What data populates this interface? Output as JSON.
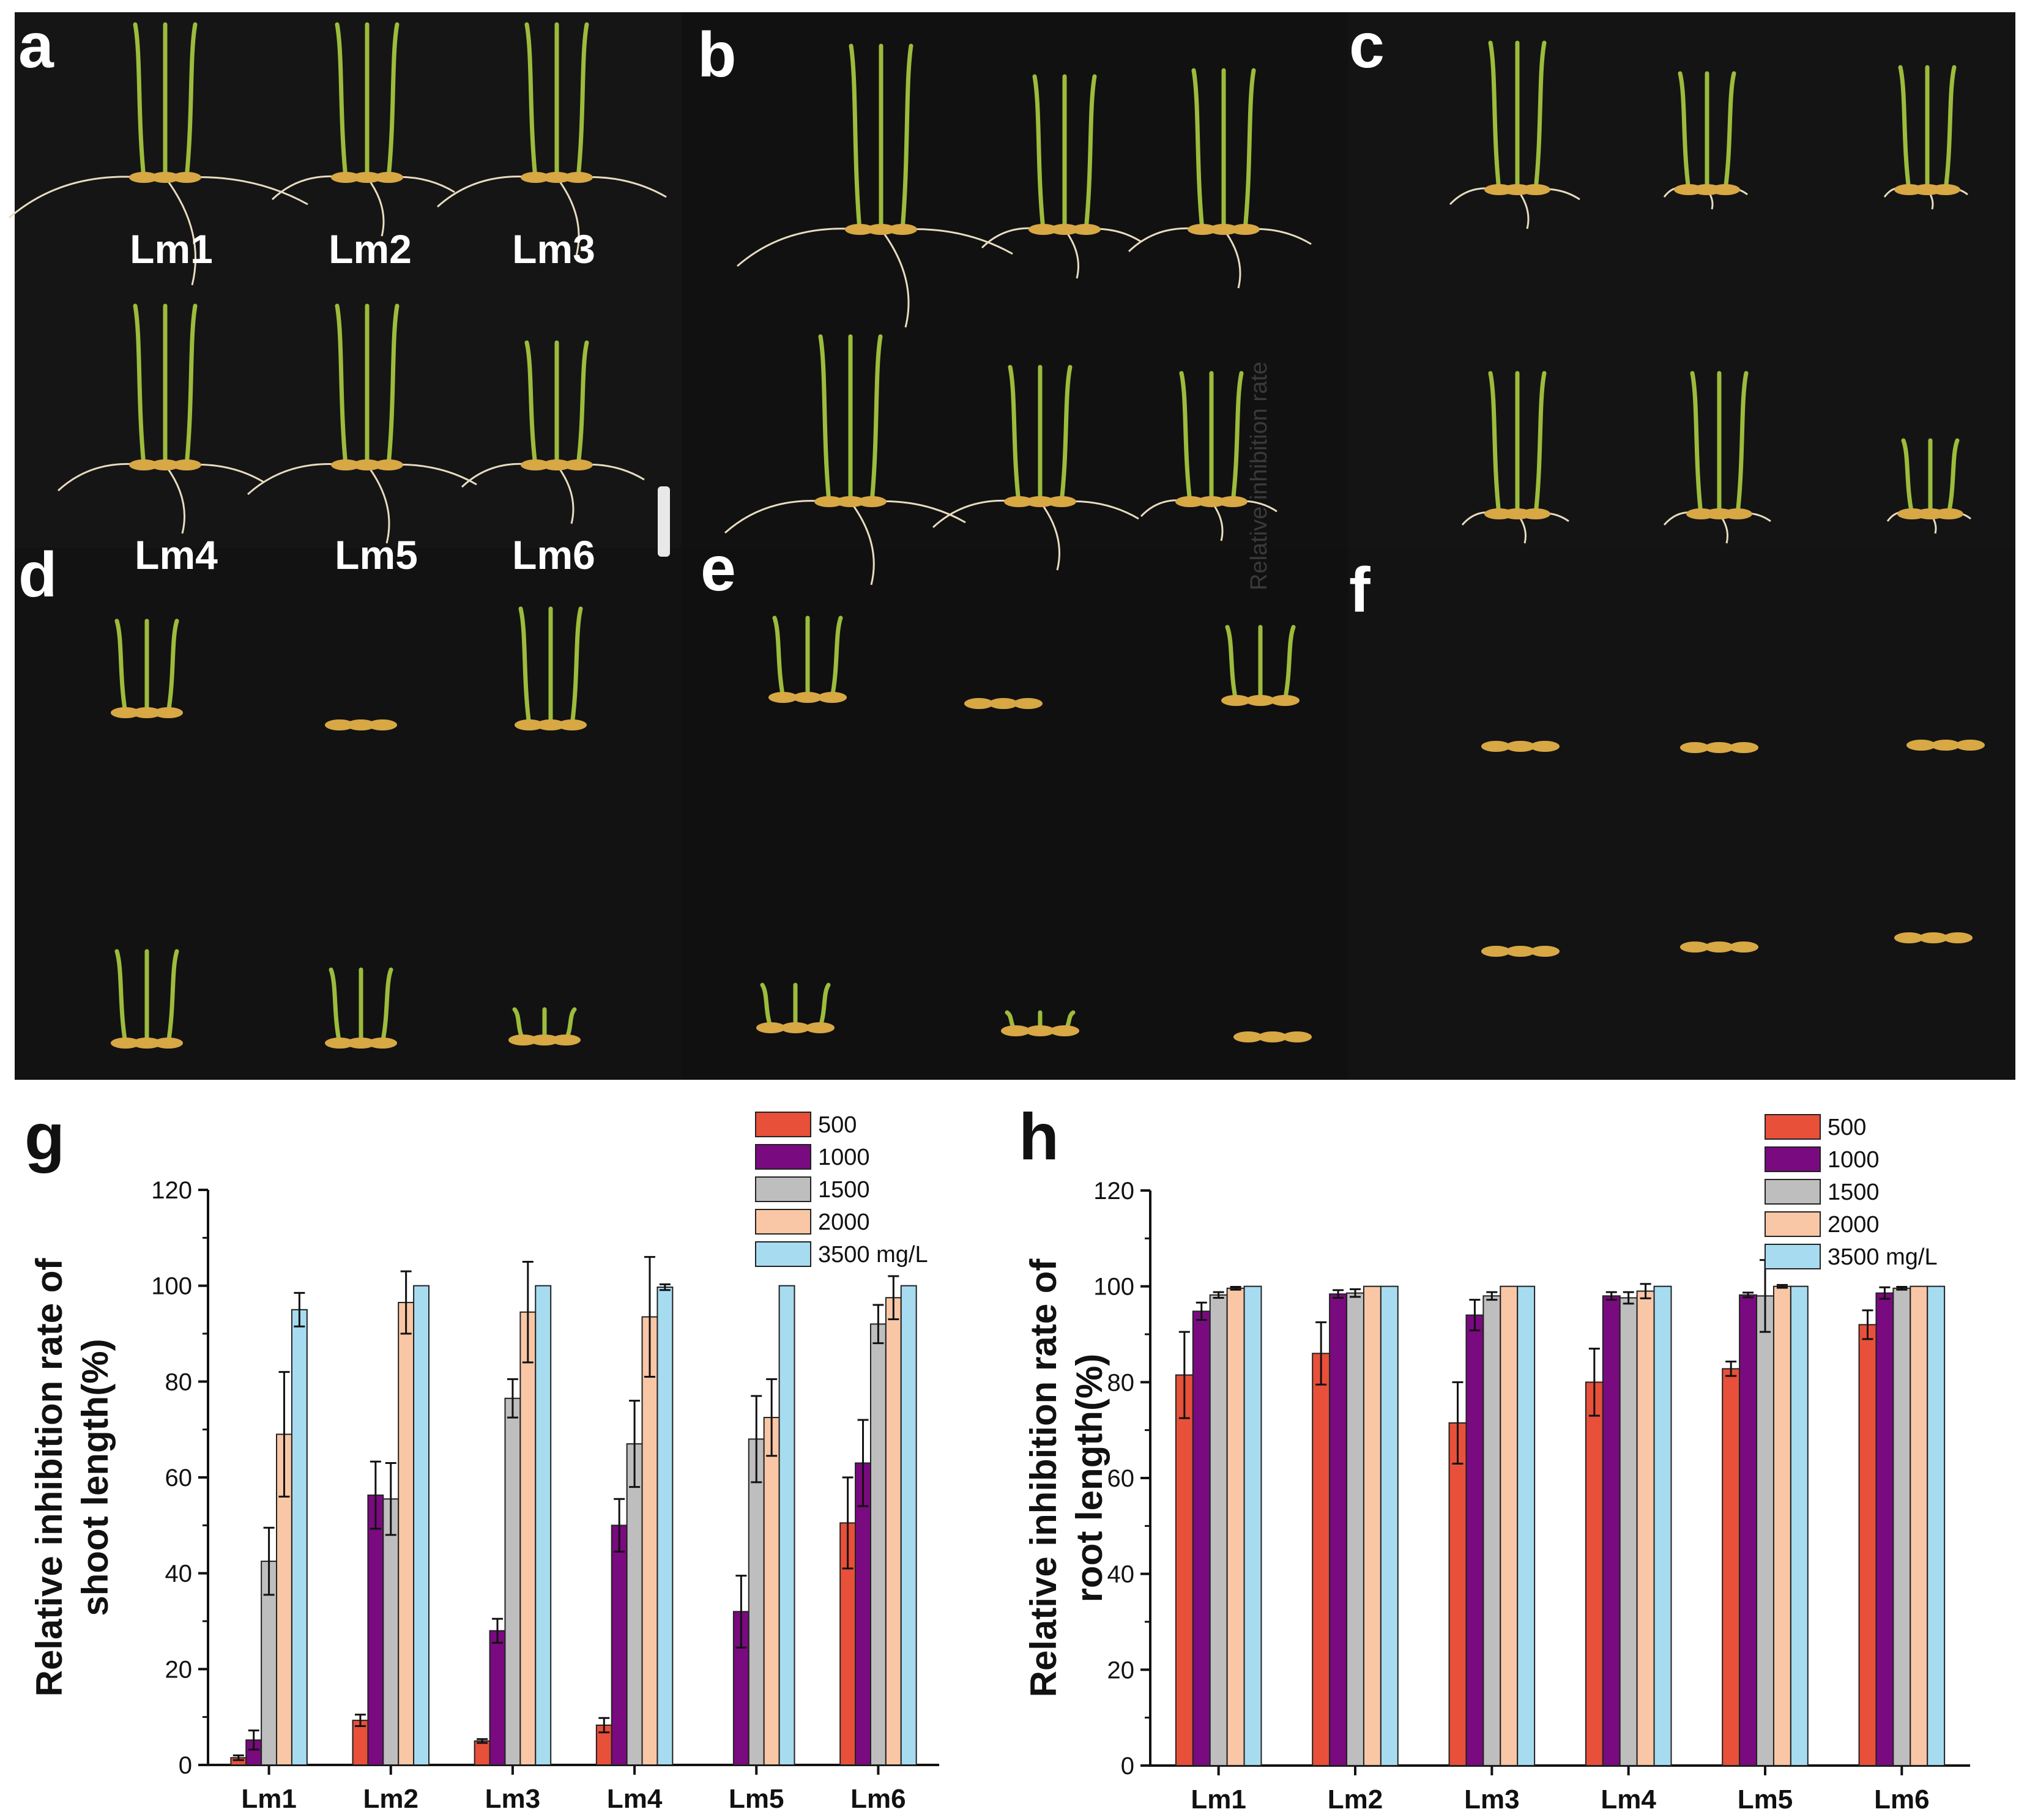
{
  "photos": {
    "panel_letters": [
      "a",
      "b",
      "c",
      "d",
      "e",
      "f"
    ],
    "sample_labels": [
      "Lm1",
      "Lm2",
      "Lm3",
      "Lm4",
      "Lm5",
      "Lm6"
    ],
    "overlay_text": "Relative inhibition rate",
    "colors": {
      "background": "#121212",
      "shoot": "#9dbb3c",
      "seed": "#d8a845",
      "root": "#e8dcc0"
    }
  },
  "chart_data": [
    {
      "type": "bar",
      "panel_letter": "g",
      "ylabel_lines": [
        "Relative inhibition rate of",
        "shoot length(%)"
      ],
      "xlabel": "",
      "categories": [
        "Lm1",
        "Lm2",
        "Lm3",
        "Lm4",
        "Lm5",
        "Lm6"
      ],
      "ylim": [
        0,
        120
      ],
      "yticks": [
        0,
        20,
        40,
        60,
        80,
        100,
        120
      ],
      "grid": false,
      "legend_placement": "top-right",
      "series": [
        {
          "name": "500",
          "color": "#e8503a",
          "values": [
            1.5,
            9.3,
            5.0,
            8.3,
            0,
            50.5
          ],
          "errors": [
            0.5,
            1.2,
            0.4,
            1.5,
            0,
            9.5
          ]
        },
        {
          "name": "1000",
          "color": "#7a0a7f",
          "values": [
            5.2,
            56.3,
            28.0,
            50.0,
            32.0,
            63.0
          ],
          "errors": [
            2.0,
            7.0,
            2.5,
            5.5,
            7.5,
            9.0
          ]
        },
        {
          "name": "1500",
          "color": "#bebebe",
          "values": [
            42.5,
            55.5,
            76.5,
            67.0,
            68.0,
            92.0
          ],
          "errors": [
            7.0,
            7.5,
            4.0,
            9.0,
            9.0,
            4.0
          ]
        },
        {
          "name": "2000",
          "color": "#f9c7a6",
          "values": [
            69.0,
            96.5,
            94.5,
            93.5,
            72.5,
            97.5
          ],
          "errors": [
            13.0,
            6.5,
            10.5,
            12.5,
            8.0,
            4.5
          ]
        },
        {
          "name": "3500 mg/L",
          "color": "#a7dcf0",
          "values": [
            95.0,
            100,
            100,
            99.7,
            100,
            100
          ],
          "errors": [
            3.5,
            0,
            0,
            0.6,
            0,
            0
          ]
        }
      ]
    },
    {
      "type": "bar",
      "panel_letter": "h",
      "ylabel_lines": [
        "Relative inhibition rate of",
        "root length(%)"
      ],
      "xlabel": "",
      "categories": [
        "Lm1",
        "Lm2",
        "Lm3",
        "Lm4",
        "Lm5",
        "Lm6"
      ],
      "ylim": [
        0,
        120
      ],
      "yticks": [
        0,
        20,
        40,
        60,
        80,
        100,
        120
      ],
      "grid": false,
      "legend_placement": "top-right",
      "series": [
        {
          "name": "500",
          "color": "#e8503a",
          "values": [
            81.5,
            86.0,
            71.5,
            80.0,
            82.8,
            92.0
          ],
          "errors": [
            9.0,
            6.5,
            8.5,
            7.0,
            1.5,
            3.0
          ]
        },
        {
          "name": "1000",
          "color": "#7a0a7f",
          "values": [
            94.8,
            98.4,
            94.0,
            98.0,
            98.2,
            98.6
          ],
          "errors": [
            1.8,
            0.8,
            3.2,
            0.8,
            0.5,
            1.2
          ]
        },
        {
          "name": "1500",
          "color": "#bebebe",
          "values": [
            98.2,
            98.6,
            98.0,
            97.6,
            98.0,
            99.6
          ],
          "errors": [
            0.6,
            0.8,
            0.8,
            1.2,
            7.5,
            0.3
          ]
        },
        {
          "name": "2000",
          "color": "#f9c7a6",
          "values": [
            99.6,
            100,
            100,
            99.0,
            100,
            100
          ],
          "errors": [
            0.3,
            0,
            0,
            1.5,
            0.3,
            0
          ]
        },
        {
          "name": "3500 mg/L",
          "color": "#a7dcf0",
          "values": [
            100,
            100,
            100,
            100,
            100,
            100
          ],
          "errors": [
            0,
            0,
            0,
            0,
            0,
            0
          ]
        }
      ]
    }
  ]
}
